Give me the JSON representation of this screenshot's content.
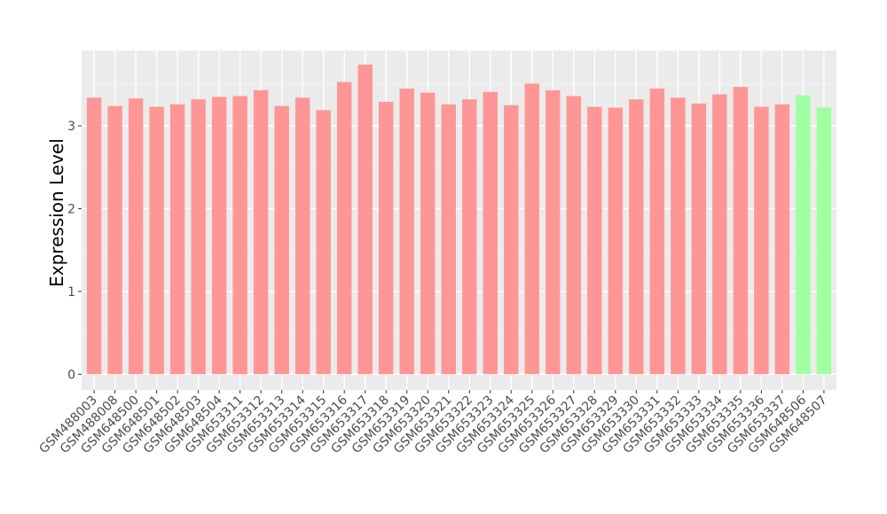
{
  "chart_data": {
    "type": "bar",
    "title": "",
    "xlabel": "",
    "ylabel": "Expression Level",
    "ylim": [
      -0.19,
      3.91
    ],
    "yticks": [
      0,
      1,
      2,
      3
    ],
    "grid": true,
    "legend": "none",
    "categories": [
      "GSM488003",
      "GSM488008",
      "GSM648500",
      "GSM648501",
      "GSM648502",
      "GSM648503",
      "GSM648504",
      "GSM653311",
      "GSM653312",
      "GSM653313",
      "GSM653314",
      "GSM653315",
      "GSM653316",
      "GSM653317",
      "GSM653318",
      "GSM653319",
      "GSM653320",
      "GSM653321",
      "GSM653322",
      "GSM653323",
      "GSM653324",
      "GSM653325",
      "GSM653326",
      "GSM653327",
      "GSM653328",
      "GSM653329",
      "GSM653330",
      "GSM653331",
      "GSM653332",
      "GSM653333",
      "GSM653334",
      "GSM653335",
      "GSM653336",
      "GSM653337",
      "GSM648506",
      "GSM648507"
    ],
    "values": [
      3.34,
      3.24,
      3.33,
      3.23,
      3.26,
      3.32,
      3.35,
      3.36,
      3.43,
      3.24,
      3.34,
      3.19,
      3.53,
      3.74,
      3.29,
      3.45,
      3.4,
      3.26,
      3.32,
      3.41,
      3.25,
      3.51,
      3.43,
      3.36,
      3.23,
      3.22,
      3.32,
      3.45,
      3.34,
      3.27,
      3.38,
      3.47,
      3.23,
      3.26,
      3.37,
      3.22
    ],
    "groups": [
      "a",
      "a",
      "a",
      "a",
      "a",
      "a",
      "a",
      "a",
      "a",
      "a",
      "a",
      "a",
      "a",
      "a",
      "a",
      "a",
      "a",
      "a",
      "a",
      "a",
      "a",
      "a",
      "a",
      "a",
      "a",
      "a",
      "a",
      "a",
      "a",
      "a",
      "a",
      "a",
      "a",
      "a",
      "b",
      "b"
    ],
    "colors": {
      "a": "#ff9696",
      "b": "#a0ffa0"
    },
    "panel_background": "#ebebeb"
  }
}
